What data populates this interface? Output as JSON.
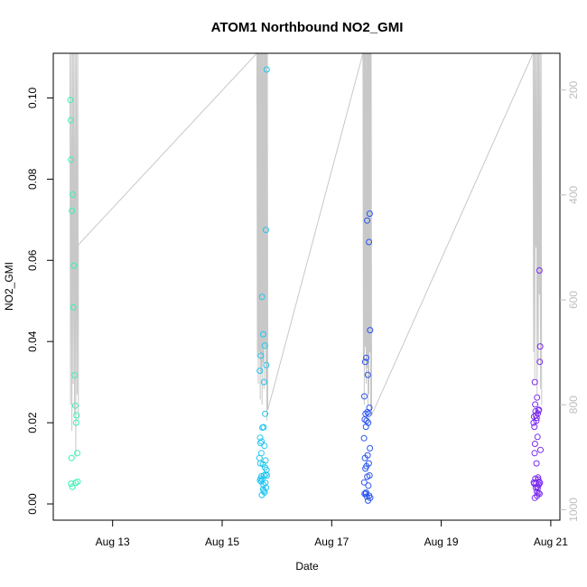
{
  "chart_data": {
    "type": "scatter",
    "title": "ATOM1 Northbound NO2_GMI",
    "xlabel": "Date",
    "ylabel": "NO2_GMI",
    "ylim": [
      -0.004,
      0.111
    ],
    "xlim": [
      "2016-08-11 22:00",
      "2016-08-21 04:00"
    ],
    "y_ticks": [
      0.0,
      0.02,
      0.04,
      0.06,
      0.08,
      0.1
    ],
    "y_tick_labels": [
      "0.00",
      "0.02",
      "0.04",
      "0.06",
      "0.08",
      "0.10"
    ],
    "x_ticks": [
      "2016-08-13",
      "2016-08-15",
      "2016-08-17",
      "2016-08-19",
      "2016-08-21"
    ],
    "x_tick_labels": [
      "Aug 13",
      "Aug 15",
      "Aug 17",
      "Aug 19",
      "Aug 21"
    ],
    "right_axis": {
      "range": [
        130,
        1020
      ],
      "inverted": true,
      "ticks": [
        200,
        400,
        600,
        800,
        1000
      ],
      "tick_labels": [
        "200",
        "400",
        "600",
        "800",
        "1000"
      ],
      "color": "#bdbdbd"
    },
    "grid": false,
    "point_colors": [
      "#3af0b2",
      "#22c6f0",
      "#2a55f0",
      "#7b2cf0"
    ],
    "profile_color": "#c8c8c8",
    "series": [
      {
        "x": [
          "2016-08-12 05:30",
          "2016-08-12 05:40",
          "2016-08-12 05:45",
          "2016-08-12 06:10",
          "2016-08-12 06:30",
          "2016-08-12 07:00",
          "2016-08-12 06:45",
          "2016-08-12 07:20",
          "2016-08-12 07:40",
          "2016-08-12 08:10",
          "2016-08-12 08:00",
          "2016-08-12 08:30",
          "2016-08-12 06:00",
          "2016-08-12 05:50",
          "2016-08-12 06:20",
          "2016-08-12 08:40",
          "2016-08-12 07:50"
        ],
        "y": [
          0.0995,
          0.0945,
          0.0848,
          0.0722,
          0.0762,
          0.0587,
          0.0484,
          0.0317,
          0.0242,
          0.0218,
          0.02,
          0.0125,
          0.0113,
          0.005,
          0.0042,
          0.0055,
          0.0052
        ]
      },
      {
        "x": [
          "2016-08-15 19:30",
          "2016-08-15 17:30",
          "2016-08-15 18:00",
          "2016-08-15 18:40",
          "2016-08-15 16:30",
          "2016-08-15 17:00",
          "2016-08-15 19:10",
          "2016-08-15 19:20",
          "2016-08-15 18:20",
          "2016-08-15 17:40",
          "2016-08-15 18:50",
          "2016-08-15 16:40",
          "2016-08-15 18:10",
          "2016-08-15 17:20",
          "2016-08-15 16:50",
          "2016-08-15 17:10",
          "2016-08-15 18:30",
          "2016-08-15 19:00",
          "2016-08-15 16:20",
          "2016-08-15 17:50",
          "2016-08-15 18:45",
          "2016-08-15 16:45",
          "2016-08-15 19:25",
          "2016-08-15 17:15",
          "2016-08-15 18:25",
          "2016-08-15 16:55",
          "2016-08-15 19:05",
          "2016-08-15 17:35",
          "2016-08-15 18:55",
          "2016-08-15 17:05",
          "2016-08-15 18:05",
          "2016-08-15 16:35",
          "2016-08-15 19:15",
          "2016-08-15 17:55",
          "2016-08-15 18:15",
          "2016-08-15 18:35",
          "2016-08-15 19:35",
          "2016-08-15 17:25"
        ],
        "y": [
          0.107,
          0.051,
          0.0418,
          0.039,
          0.0328,
          0.0365,
          0.0675,
          0.0342,
          0.03,
          0.0188,
          0.0222,
          0.0163,
          0.0189,
          0.0154,
          0.015,
          0.0125,
          0.0143,
          0.0107,
          0.0113,
          0.0098,
          0.009,
          0.01,
          0.0084,
          0.0068,
          0.007,
          0.0063,
          0.0073,
          0.006,
          0.0052,
          0.0055,
          0.0047,
          0.0058,
          0.004,
          0.0036,
          0.0032,
          0.0028,
          0.007,
          0.0022
        ]
      },
      {
        "x": [
          "2016-08-17 16:40",
          "2016-08-17 15:30",
          "2016-08-17 16:20",
          "2016-08-17 16:50",
          "2016-08-17 14:40",
          "2016-08-17 15:10",
          "2016-08-17 15:50",
          "2016-08-17 14:20",
          "2016-08-17 16:30",
          "2016-08-17 15:40",
          "2016-08-17 16:10",
          "2016-08-17 14:50",
          "2016-08-17 15:20",
          "2016-08-17 14:30",
          "2016-08-17 16:00",
          "2016-08-17 15:00",
          "2016-08-17 14:10",
          "2016-08-17 16:45",
          "2016-08-17 15:45",
          "2016-08-17 14:35",
          "2016-08-17 16:15",
          "2016-08-17 15:15",
          "2016-08-17 14:45",
          "2016-08-17 16:35",
          "2016-08-17 15:35",
          "2016-08-17 14:15",
          "2016-08-17 16:05",
          "2016-08-17 15:05",
          "2016-08-17 14:55",
          "2016-08-17 16:25",
          "2016-08-17 15:25",
          "2016-08-17 14:25",
          "2016-08-17 16:55",
          "2016-08-17 15:55"
        ],
        "y": [
          0.0715,
          0.0698,
          0.0645,
          0.0428,
          0.035,
          0.036,
          0.0318,
          0.0265,
          0.0237,
          0.0226,
          0.0222,
          0.0222,
          0.0205,
          0.0208,
          0.02,
          0.019,
          0.0162,
          0.0137,
          0.012,
          0.0113,
          0.01,
          0.0093,
          0.0087,
          0.007,
          0.0067,
          0.0053,
          0.0045,
          0.0028,
          0.0025,
          0.002,
          0.0018,
          0.0025,
          0.0015,
          0.0008
        ]
      },
      {
        "x": [
          "2016-08-20 19:00",
          "2016-08-20 17:00",
          "2016-08-20 19:20",
          "2016-08-20 19:10",
          "2016-08-20 18:00",
          "2016-08-20 17:10",
          "2016-08-20 17:20",
          "2016-08-20 17:30",
          "2016-08-20 16:40",
          "2016-08-20 18:40",
          "2016-08-20 18:20",
          "2016-08-20 17:50",
          "2016-08-20 18:50",
          "2016-08-20 17:40",
          "2016-08-20 16:50",
          "2016-08-20 16:30",
          "2016-08-20 18:10",
          "2016-08-20 19:30",
          "2016-08-20 17:05",
          "2016-08-20 16:55",
          "2016-08-20 17:45",
          "2016-08-20 18:30",
          "2016-08-20 17:15",
          "2016-08-20 19:15",
          "2016-08-20 17:35",
          "2016-08-20 18:25",
          "2016-08-20 16:35",
          "2016-08-20 18:45",
          "2016-08-20 18:05",
          "2016-08-20 17:25",
          "2016-08-20 18:15",
          "2016-08-20 17:55",
          "2016-08-20 18:35",
          "2016-08-20 19:05",
          "2016-08-20 17:00",
          "2016-08-20 18:55",
          "2016-08-20 16:45",
          "2016-08-20 18:00"
        ],
        "y": [
          0.0575,
          0.03,
          0.0388,
          0.035,
          0.0262,
          0.0245,
          0.0228,
          0.0218,
          0.0215,
          0.023,
          0.0223,
          0.0212,
          0.0232,
          0.0205,
          0.019,
          0.02,
          0.0165,
          0.0133,
          0.0148,
          0.0125,
          0.01,
          0.006,
          0.0062,
          0.0052,
          0.005,
          0.0065,
          0.0053,
          0.0047,
          0.0043,
          0.004,
          0.0038,
          0.003,
          0.0027,
          0.0025,
          0.0015,
          0.0055,
          0.005,
          0.002
        ]
      }
    ]
  }
}
